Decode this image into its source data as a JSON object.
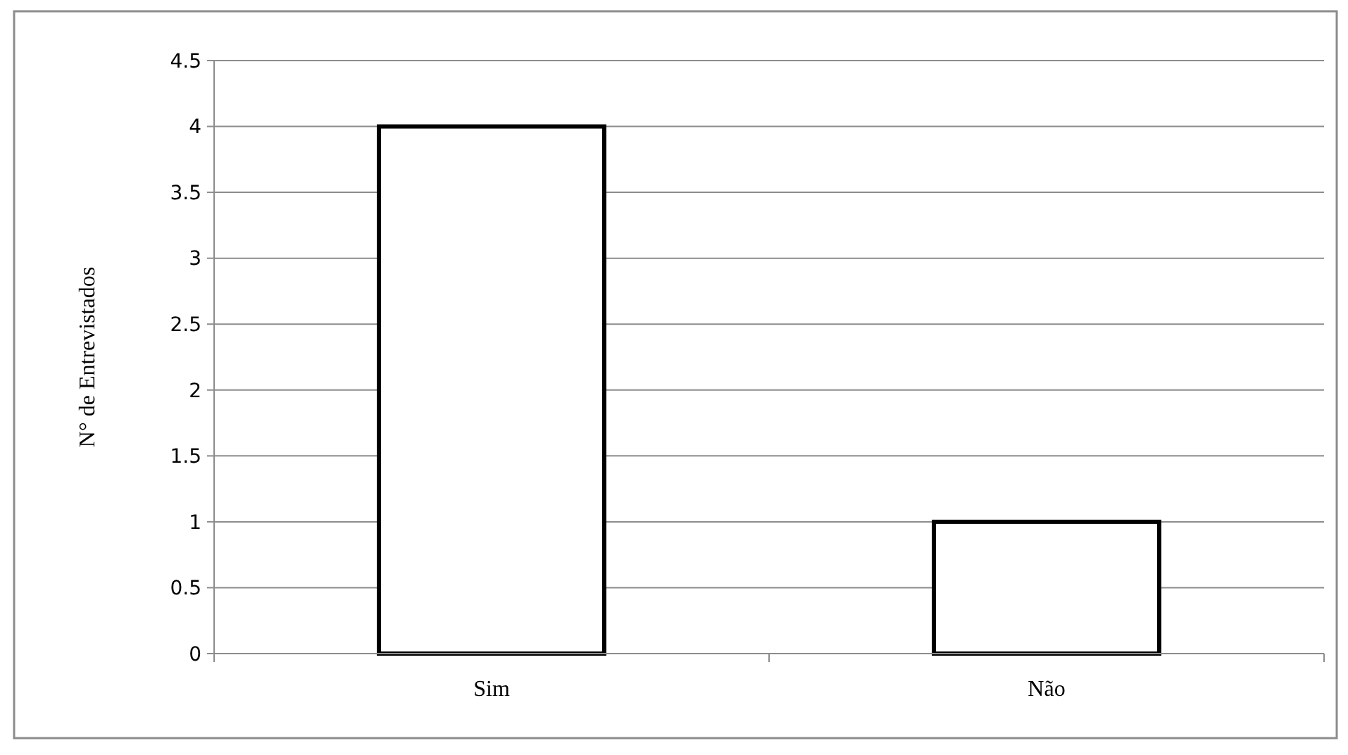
{
  "chart_data": {
    "type": "bar",
    "ylabel": "N° de Entrevistados",
    "categories": [
      "Sim",
      "Não"
    ],
    "values": [
      4,
      1
    ],
    "color": "#ffffff",
    "ylim": [
      0,
      4.5
    ],
    "yticks": [
      0,
      0.5,
      1,
      1.5,
      2,
      2.5,
      3,
      3.5,
      4,
      4.5
    ],
    "grid": "y"
  }
}
